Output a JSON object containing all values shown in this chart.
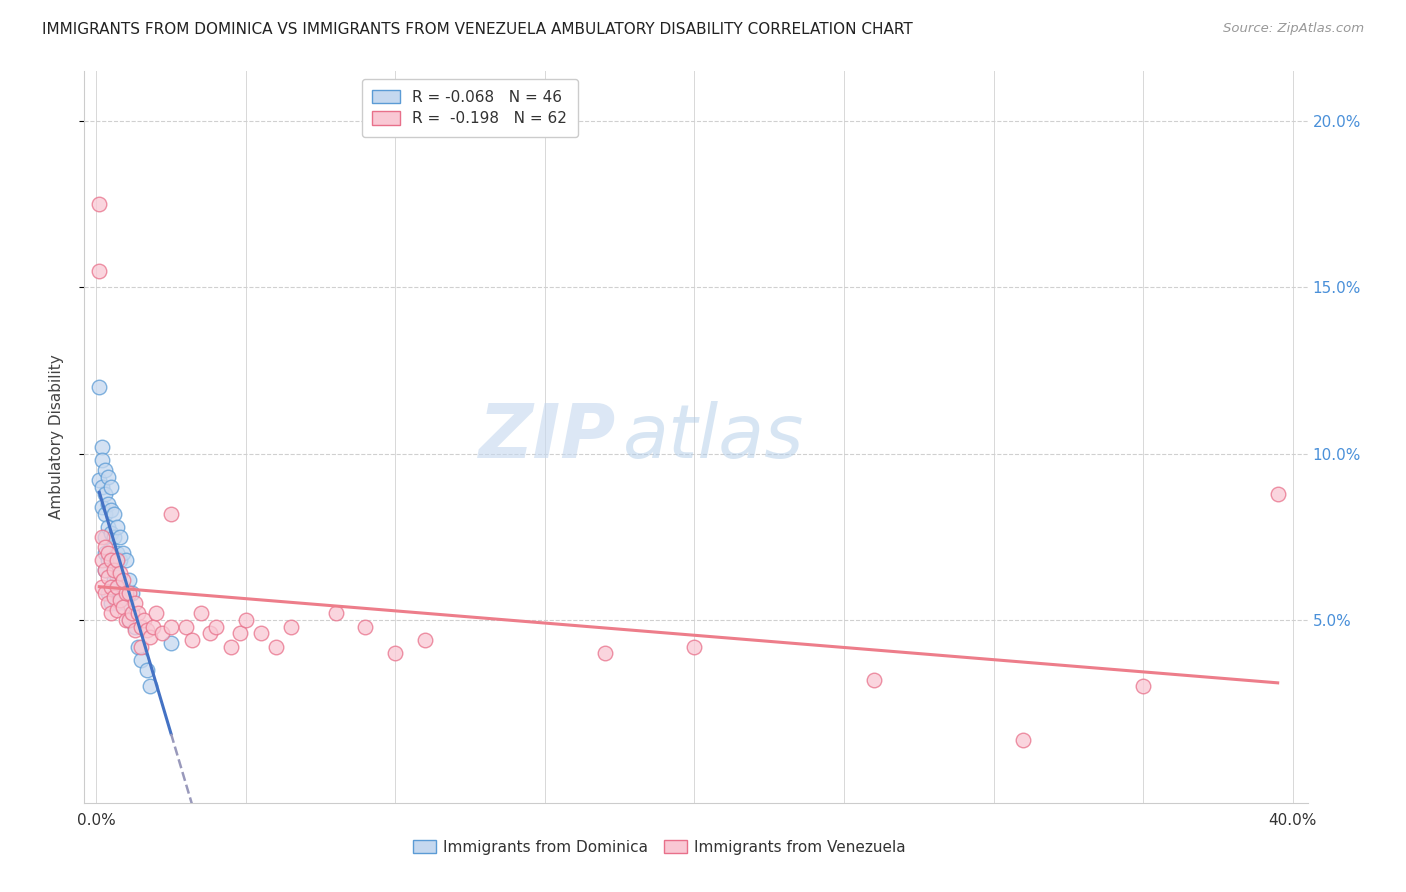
{
  "title": "IMMIGRANTS FROM DOMINICA VS IMMIGRANTS FROM VENEZUELA AMBULATORY DISABILITY CORRELATION CHART",
  "source": "Source: ZipAtlas.com",
  "ylabel": "Ambulatory Disability",
  "legend_label_1": "Immigrants from Dominica",
  "legend_label_2": "Immigrants from Venezuela",
  "R1": -0.068,
  "N1": 46,
  "R2": -0.198,
  "N2": 62,
  "color_blue_fill": "#c5d8ef",
  "color_blue_edge": "#5b9bd5",
  "color_pink_fill": "#f9c8d4",
  "color_pink_edge": "#e8708a",
  "color_blue_line": "#4472c4",
  "color_pink_line": "#ed7d8a",
  "color_dashed": "#9999bb",
  "background": "#ffffff",
  "watermark_zip": "ZIP",
  "watermark_atlas": "atlas",
  "xlim": [
    0.0,
    0.4
  ],
  "ylim": [
    0.0,
    0.21
  ],
  "yticks": [
    0.05,
    0.1,
    0.15,
    0.2
  ],
  "xtick_labels_show": [
    "0.0%",
    "40.0%"
  ],
  "dominica_x": [
    0.001,
    0.001,
    0.002,
    0.002,
    0.002,
    0.002,
    0.003,
    0.003,
    0.003,
    0.003,
    0.003,
    0.003,
    0.004,
    0.004,
    0.004,
    0.004,
    0.004,
    0.005,
    0.005,
    0.005,
    0.005,
    0.005,
    0.006,
    0.006,
    0.006,
    0.006,
    0.007,
    0.007,
    0.007,
    0.007,
    0.008,
    0.008,
    0.008,
    0.009,
    0.009,
    0.01,
    0.01,
    0.011,
    0.011,
    0.012,
    0.013,
    0.014,
    0.015,
    0.017,
    0.018,
    0.025
  ],
  "dominica_y": [
    0.12,
    0.092,
    0.102,
    0.098,
    0.09,
    0.084,
    0.095,
    0.088,
    0.082,
    0.075,
    0.07,
    0.065,
    0.093,
    0.085,
    0.078,
    0.068,
    0.058,
    0.09,
    0.083,
    0.076,
    0.068,
    0.055,
    0.082,
    0.075,
    0.069,
    0.062,
    0.078,
    0.07,
    0.063,
    0.055,
    0.075,
    0.068,
    0.057,
    0.07,
    0.06,
    0.068,
    0.055,
    0.062,
    0.05,
    0.058,
    0.048,
    0.042,
    0.038,
    0.035,
    0.03,
    0.043
  ],
  "venezuela_x": [
    0.001,
    0.001,
    0.002,
    0.002,
    0.002,
    0.003,
    0.003,
    0.003,
    0.004,
    0.004,
    0.004,
    0.005,
    0.005,
    0.005,
    0.006,
    0.006,
    0.007,
    0.007,
    0.007,
    0.008,
    0.008,
    0.009,
    0.009,
    0.01,
    0.01,
    0.011,
    0.011,
    0.012,
    0.013,
    0.013,
    0.014,
    0.015,
    0.015,
    0.016,
    0.017,
    0.018,
    0.019,
    0.02,
    0.022,
    0.025,
    0.025,
    0.03,
    0.032,
    0.035,
    0.038,
    0.04,
    0.045,
    0.048,
    0.05,
    0.055,
    0.06,
    0.065,
    0.08,
    0.09,
    0.1,
    0.11,
    0.17,
    0.2,
    0.26,
    0.31,
    0.35,
    0.395
  ],
  "venezuela_y": [
    0.175,
    0.155,
    0.075,
    0.068,
    0.06,
    0.072,
    0.065,
    0.058,
    0.07,
    0.063,
    0.055,
    0.068,
    0.06,
    0.052,
    0.065,
    0.057,
    0.068,
    0.06,
    0.053,
    0.064,
    0.056,
    0.062,
    0.054,
    0.058,
    0.05,
    0.058,
    0.05,
    0.052,
    0.055,
    0.047,
    0.052,
    0.048,
    0.042,
    0.05,
    0.047,
    0.045,
    0.048,
    0.052,
    0.046,
    0.082,
    0.048,
    0.048,
    0.044,
    0.052,
    0.046,
    0.048,
    0.042,
    0.046,
    0.05,
    0.046,
    0.042,
    0.048,
    0.052,
    0.048,
    0.04,
    0.044,
    0.04,
    0.042,
    0.032,
    0.014,
    0.03,
    0.088
  ]
}
